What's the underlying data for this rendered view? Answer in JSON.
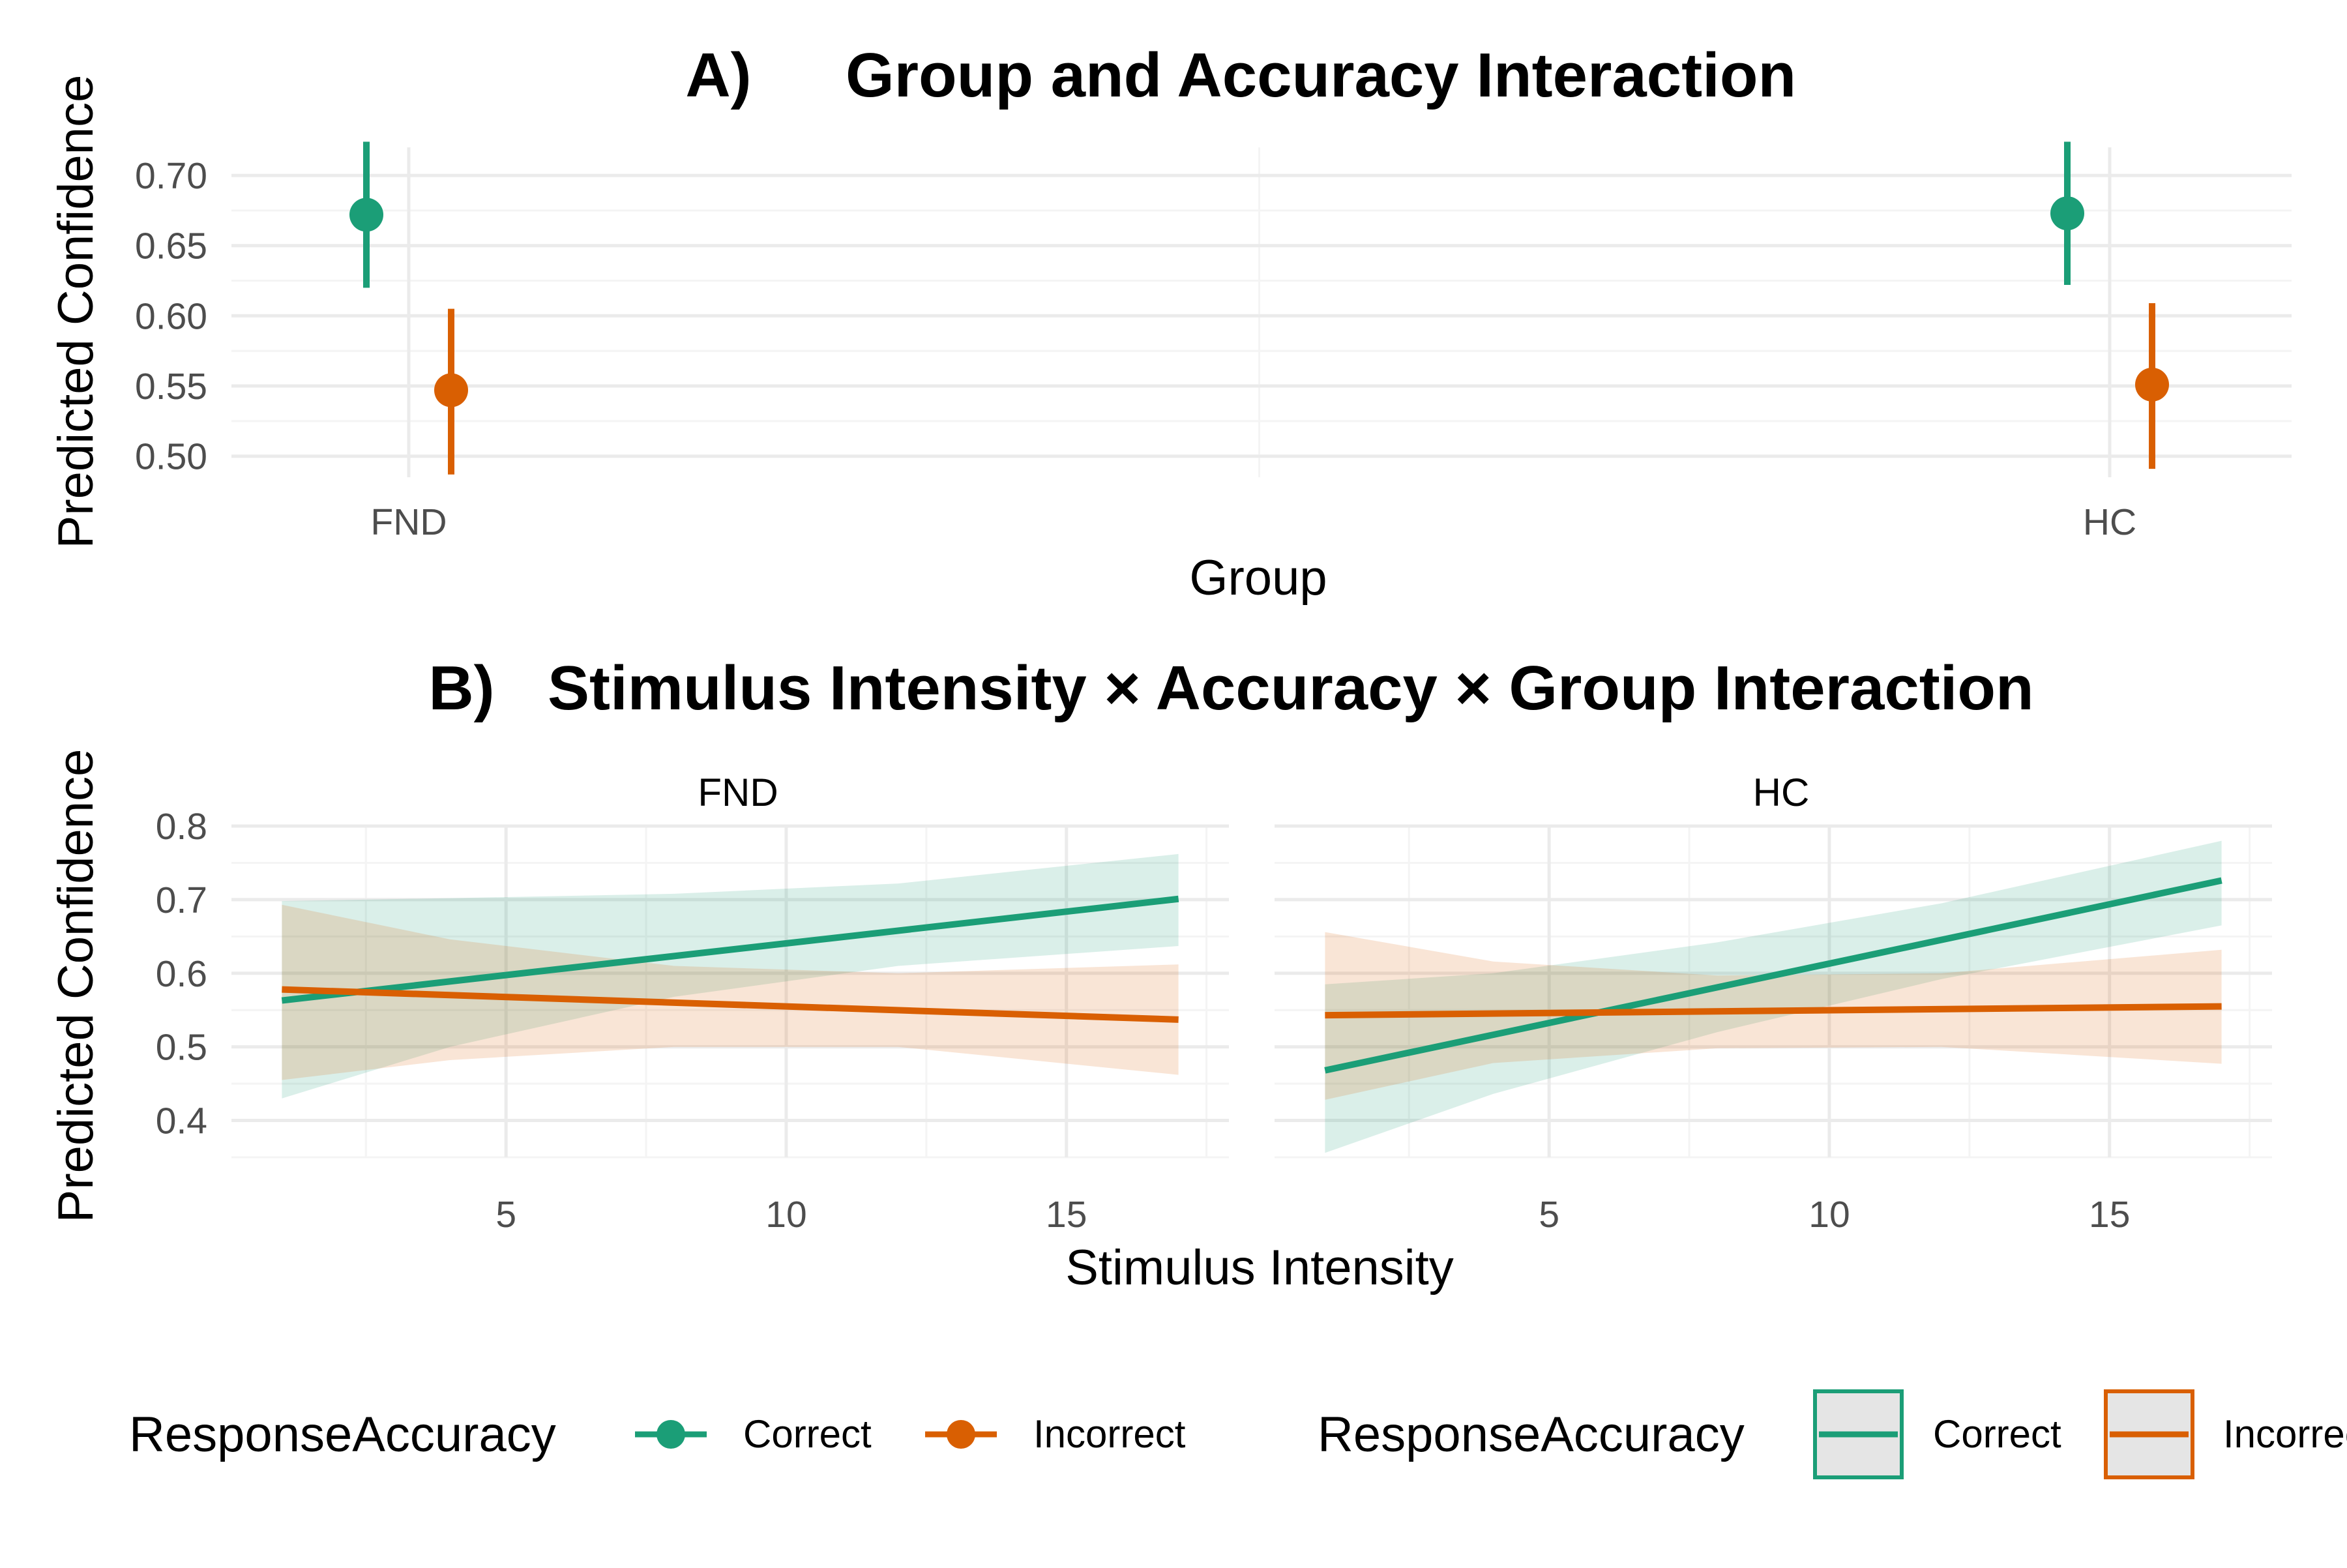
{
  "colors": {
    "correct": "#1B9E77",
    "incorrect": "#D95F02",
    "grid_major": "#EBEBEB",
    "grid_minor": "#F4F4F4",
    "text": "#000000",
    "tick_text": "#4D4D4D"
  },
  "chart_data": [
    {
      "type": "scatter",
      "title_prefix": "A)",
      "title": "Group and Accuracy Interaction",
      "xlabel": "Group",
      "ylabel": "Predicted Confidence",
      "categories": [
        "FND",
        "HC"
      ],
      "ylim": [
        0.485,
        0.72
      ],
      "yticks": [
        0.5,
        0.55,
        0.6,
        0.65,
        0.7
      ],
      "ytick_labels": [
        "0.50",
        "0.55",
        "0.60",
        "0.65",
        "0.70"
      ],
      "grid": true,
      "series": [
        {
          "name": "Correct",
          "color": "#1B9E77",
          "points": [
            {
              "x": "FND",
              "y": 0.672,
              "lo": 0.62,
              "hi": 0.724
            },
            {
              "x": "HC",
              "y": 0.673,
              "lo": 0.622,
              "hi": 0.724
            }
          ]
        },
        {
          "name": "Incorrect",
          "color": "#D95F02",
          "points": [
            {
              "x": "FND",
              "y": 0.547,
              "lo": 0.487,
              "hi": 0.605
            },
            {
              "x": "HC",
              "y": 0.551,
              "lo": 0.491,
              "hi": 0.609
            }
          ]
        }
      ]
    },
    {
      "type": "line",
      "title_prefix": "B)",
      "title": "Stimulus Intensity × Accuracy × Group Interaction",
      "xlabel": "Stimulus Intensity",
      "ylabel": "Predicted Confidence",
      "xlim": [
        0.1,
        17.9
      ],
      "xticks": [
        5,
        10,
        15
      ],
      "ylim": [
        0.35,
        0.8
      ],
      "yticks": [
        0.4,
        0.5,
        0.6,
        0.7,
        0.8
      ],
      "ytick_labels": [
        "0.4",
        "0.5",
        "0.6",
        "0.7",
        "0.8"
      ],
      "grid": true,
      "panels": [
        {
          "label": "FND",
          "series": [
            {
              "name": "Correct",
              "color": "#1B9E77",
              "x": [
                1,
                17
              ],
              "y": [
                0.563,
                0.701
              ],
              "ribbon": {
                "x": [
                  1,
                  4,
                  8,
                  12,
                  17
                ],
                "lo": [
                  0.43,
                  0.5,
                  0.568,
                  0.61,
                  0.637
                ],
                "hi": [
                  0.698,
                  0.702,
                  0.708,
                  0.722,
                  0.762
                ]
              }
            },
            {
              "name": "Incorrect",
              "color": "#D95F02",
              "x": [
                1,
                17
              ],
              "y": [
                0.578,
                0.537
              ],
              "ribbon": {
                "x": [
                  1,
                  4,
                  8,
                  12,
                  17
                ],
                "lo": [
                  0.455,
                  0.482,
                  0.5,
                  0.5,
                  0.462
                ],
                "hi": [
                  0.693,
                  0.646,
                  0.61,
                  0.6,
                  0.612
                ]
              }
            }
          ]
        },
        {
          "label": "HC",
          "series": [
            {
              "name": "Correct",
              "color": "#1B9E77",
              "x": [
                1,
                17
              ],
              "y": [
                0.468,
                0.726
              ],
              "ribbon": {
                "x": [
                  1,
                  4,
                  8,
                  12,
                  17
                ],
                "lo": [
                  0.356,
                  0.436,
                  0.52,
                  0.592,
                  0.665
                ],
                "hi": [
                  0.585,
                  0.6,
                  0.642,
                  0.695,
                  0.78
                ]
              }
            },
            {
              "name": "Incorrect",
              "color": "#D95F02",
              "x": [
                1,
                17
              ],
              "y": [
                0.543,
                0.555
              ],
              "ribbon": {
                "x": [
                  1,
                  4,
                  8,
                  12,
                  17
                ],
                "lo": [
                  0.428,
                  0.478,
                  0.498,
                  0.5,
                  0.477
                ],
                "hi": [
                  0.656,
                  0.616,
                  0.597,
                  0.6,
                  0.632
                ]
              }
            }
          ]
        }
      ]
    }
  ],
  "legends": [
    {
      "title": "ResponseAccuracy",
      "kind": "point",
      "entries": [
        "Correct",
        "Incorrect"
      ]
    },
    {
      "title": "ResponseAccuracy",
      "kind": "line-fill",
      "entries": [
        "Correct",
        "Incorrect"
      ]
    }
  ]
}
